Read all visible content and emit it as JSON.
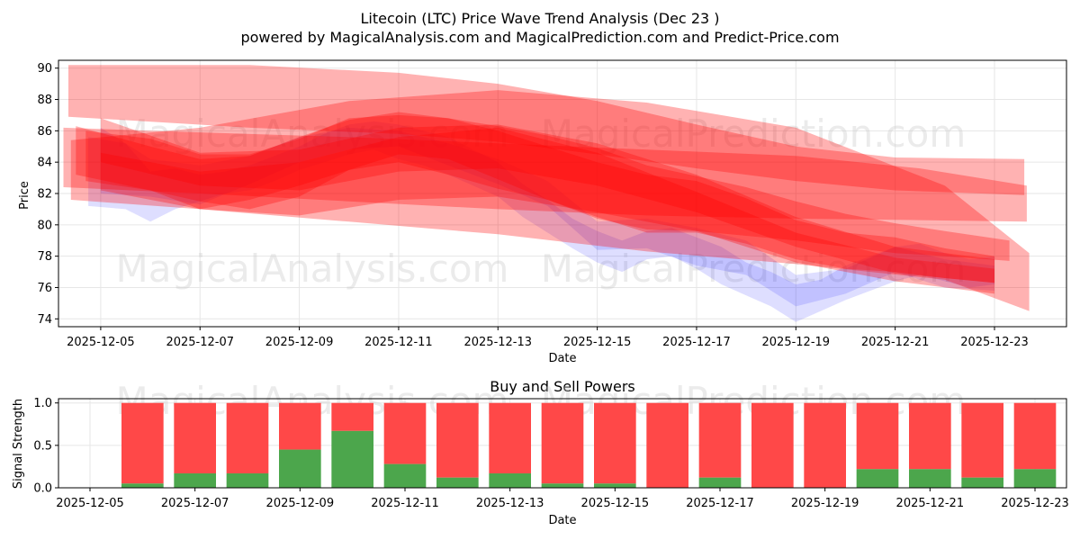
{
  "title": "Litecoin (LTC) Price Wave Trend Analysis (Dec 23 )",
  "subtitle": "powered by MagicalAnalysis.com and MagicalPrediction.com and Predict-Price.com",
  "watermarks": [
    "MagicalAnalysis.com",
    "MagicalPrediction.com"
  ],
  "colors": {
    "red": "#ff0000",
    "blue": "#0000ff",
    "green": "#4ca64c",
    "sell": "#ff4848",
    "grid": "#e6e6e6"
  },
  "chart_data": [
    {
      "type": "area",
      "name": "price-wave-chart",
      "xlabel": "Date",
      "ylabel": "Price",
      "xlim": [
        -0.85,
        19.45
      ],
      "ylim": [
        73.5,
        90.5
      ],
      "x_ticks": [
        "2025-12-05",
        "2025-12-07",
        "2025-12-09",
        "2025-12-11",
        "2025-12-13",
        "2025-12-15",
        "2025-12-17",
        "2025-12-19",
        "2025-12-21",
        "2025-12-23"
      ],
      "x_tick_positions": [
        0,
        2,
        4,
        6,
        8,
        10,
        12,
        14,
        16,
        18
      ],
      "y_ticks": [
        74,
        76,
        78,
        80,
        82,
        84,
        86,
        88,
        90
      ],
      "grid": true,
      "bands_red": [
        {
          "x": [
            -0.65,
            3,
            6,
            8,
            10,
            12,
            14,
            16,
            18.6
          ],
          "low": [
            86.9,
            86.2,
            85.8,
            85.3,
            84.5,
            83.6,
            82.8,
            82.2,
            81.9
          ],
          "high": [
            90.2,
            90.2,
            89.7,
            89.0,
            87.9,
            86.4,
            85.0,
            84.3,
            84.2
          ]
        },
        {
          "x": [
            -0.75,
            2,
            5,
            8,
            11,
            14,
            16.5,
            18.65
          ],
          "low": [
            82.4,
            82.0,
            81.5,
            81.0,
            80.6,
            80.4,
            80.3,
            80.2
          ],
          "high": [
            86.2,
            85.9,
            85.6,
            85.2,
            84.8,
            84.4,
            83.6,
            82.5
          ]
        },
        {
          "x": [
            -0.5,
            1,
            2,
            3,
            4,
            5,
            6,
            7,
            8,
            9,
            10,
            11,
            12,
            13,
            14,
            15,
            16,
            17,
            18.3
          ],
          "low": [
            83.2,
            82.2,
            81.0,
            81.6,
            82.5,
            83.5,
            84.0,
            83.2,
            82.3,
            81.6,
            80.4,
            79.7,
            79.6,
            79.3,
            79.0,
            78.6,
            78.2,
            78.0,
            77.7
          ],
          "high": [
            86.3,
            85.0,
            84.2,
            84.4,
            85.6,
            86.7,
            87.2,
            86.8,
            86.3,
            85.7,
            84.9,
            83.8,
            83.1,
            82.4,
            81.5,
            80.7,
            80.1,
            79.6,
            79.0
          ]
        },
        {
          "x": [
            -0.6,
            2,
            5,
            8,
            11,
            14,
            17,
            18.7
          ],
          "low": [
            81.6,
            81.0,
            80.2,
            79.4,
            78.3,
            77.5,
            76.5,
            74.5
          ],
          "high": [
            85.4,
            86.2,
            87.9,
            88.6,
            87.8,
            86.2,
            82.5,
            78.2
          ]
        },
        {
          "x": [
            -0.3,
            1,
            2,
            3,
            4,
            5,
            6,
            7,
            8,
            9,
            10,
            11,
            12,
            13,
            14,
            15,
            16,
            17,
            18
          ],
          "low": [
            82.8,
            82.2,
            81.5,
            81.0,
            81.8,
            83.5,
            84.5,
            84.2,
            82.9,
            81.6,
            80.5,
            79.5,
            79.5,
            78.8,
            77.8,
            77.2,
            77.0,
            76.6,
            76.3
          ],
          "high": [
            86.0,
            85.5,
            84.5,
            84.5,
            85.5,
            86.8,
            87.0,
            86.8,
            86.0,
            85.0,
            84.0,
            83.2,
            82.8,
            81.7,
            80.3,
            79.5,
            79.2,
            78.5,
            78.0
          ]
        },
        {
          "x": [
            0,
            2,
            4,
            6,
            8,
            10,
            12,
            14,
            16,
            18
          ],
          "low": [
            84.0,
            82.5,
            82.2,
            83.4,
            83.6,
            82.5,
            80.8,
            78.6,
            76.9,
            76.3
          ],
          "high": [
            86.8,
            84.6,
            84.8,
            86.2,
            86.4,
            85.2,
            83.2,
            80.5,
            78.6,
            77.8
          ]
        },
        {
          "x": [
            0,
            2,
            4,
            6,
            8,
            10,
            12,
            14,
            16,
            18
          ],
          "low": [
            82.2,
            81.0,
            80.6,
            81.6,
            81.8,
            80.8,
            79.6,
            77.6,
            76.4,
            75.6
          ],
          "high": [
            84.6,
            83.4,
            84.0,
            85.6,
            86.2,
            84.6,
            82.1,
            79.5,
            77.9,
            77.2
          ]
        }
      ],
      "bands_blue": [
        {
          "x": [
            -0.25,
            0.5,
            1,
            1.5,
            2,
            2.5,
            3,
            3.5,
            4,
            4.5,
            5,
            5.5,
            6,
            6.5,
            7,
            7.5,
            8,
            8.5,
            9,
            9.5,
            10,
            10.5,
            11,
            11.5,
            12,
            12.5,
            13,
            13.5,
            14,
            14.5,
            15,
            15.5,
            16,
            16.5,
            17,
            17.5,
            18
          ],
          "low": [
            81.2,
            81.0,
            80.2,
            81.0,
            81.5,
            82.0,
            82.2,
            82.8,
            83.5,
            84.0,
            84.5,
            84.8,
            84.2,
            83.8,
            83.2,
            82.5,
            81.8,
            80.5,
            79.5,
            78.5,
            77.6,
            77.0,
            77.8,
            78.0,
            77.2,
            76.2,
            75.5,
            74.8,
            73.8,
            74.5,
            75.2,
            75.8,
            76.4,
            76.8,
            76.4,
            76.0,
            76.2
          ],
          "high": [
            85.6,
            85.2,
            83.4,
            83.6,
            83.2,
            83.4,
            83.8,
            84.4,
            85.0,
            85.8,
            86.4,
            86.6,
            86.4,
            86.0,
            85.6,
            84.8,
            84.0,
            82.6,
            81.6,
            80.4,
            79.6,
            79.0,
            79.6,
            79.8,
            79.2,
            78.6,
            77.6,
            77.0,
            76.2,
            76.5,
            77.4,
            78.0,
            78.6,
            78.8,
            78.2,
            77.8,
            78.0
          ]
        },
        {
          "x": [
            0,
            1,
            2,
            3,
            4,
            5,
            6,
            7,
            8,
            9,
            10,
            11,
            12,
            13,
            14,
            15,
            16,
            17,
            18
          ],
          "low": [
            82.0,
            81.8,
            81.3,
            82.6,
            84.0,
            84.8,
            85.0,
            83.8,
            82.6,
            81.2,
            78.4,
            78.5,
            77.4,
            76.8,
            74.8,
            75.6,
            77.0,
            76.0,
            75.8
          ],
          "high": [
            86.2,
            84.2,
            83.8,
            84.4,
            85.6,
            86.2,
            86.0,
            85.2,
            84.2,
            82.8,
            80.2,
            80.4,
            79.8,
            79.0,
            76.8,
            77.2,
            78.6,
            77.8,
            77.4
          ]
        }
      ]
    },
    {
      "type": "bar",
      "name": "buy-sell-powers",
      "title": "Buy and Sell Powers",
      "xlabel": "Date",
      "ylabel": "Signal Strength",
      "ylim": [
        0,
        1.05
      ],
      "xlim": [
        -0.6,
        18.6
      ],
      "y_ticks": [
        "0.0",
        "0.5",
        "1.0"
      ],
      "y_tick_values": [
        0,
        0.5,
        1.0
      ],
      "x_ticks": [
        "2025-12-05",
        "2025-12-07",
        "2025-12-09",
        "2025-12-11",
        "2025-12-13",
        "2025-12-15",
        "2025-12-17",
        "2025-12-19",
        "2025-12-21",
        "2025-12-23"
      ],
      "x_tick_positions": [
        0,
        2,
        4,
        6,
        8,
        10,
        12,
        14,
        16,
        18
      ],
      "categories": [
        "2025-12-06",
        "2025-12-07",
        "2025-12-08",
        "2025-12-09",
        "2025-12-10",
        "2025-12-11",
        "2025-12-12",
        "2025-12-13",
        "2025-12-14",
        "2025-12-15",
        "2025-12-16",
        "2025-12-17",
        "2025-12-18",
        "2025-12-19",
        "2025-12-20",
        "2025-12-21",
        "2025-12-22",
        "2025-12-23"
      ],
      "category_positions": [
        1,
        2,
        3,
        4,
        5,
        6,
        7,
        8,
        9,
        10,
        11,
        12,
        13,
        14,
        15,
        16,
        17,
        18
      ],
      "series": [
        {
          "name": "Buy",
          "values": [
            0.05,
            0.17,
            0.17,
            0.45,
            0.67,
            0.28,
            0.12,
            0.17,
            0.05,
            0.05,
            0.0,
            0.12,
            0.0,
            0.0,
            0.22,
            0.22,
            0.12,
            0.22
          ]
        },
        {
          "name": "Sell",
          "values": [
            0.95,
            0.83,
            0.83,
            0.55,
            0.33,
            0.72,
            0.88,
            0.83,
            0.95,
            0.95,
            1.0,
            0.88,
            1.0,
            1.0,
            0.78,
            0.78,
            0.88,
            0.78
          ]
        }
      ]
    }
  ]
}
